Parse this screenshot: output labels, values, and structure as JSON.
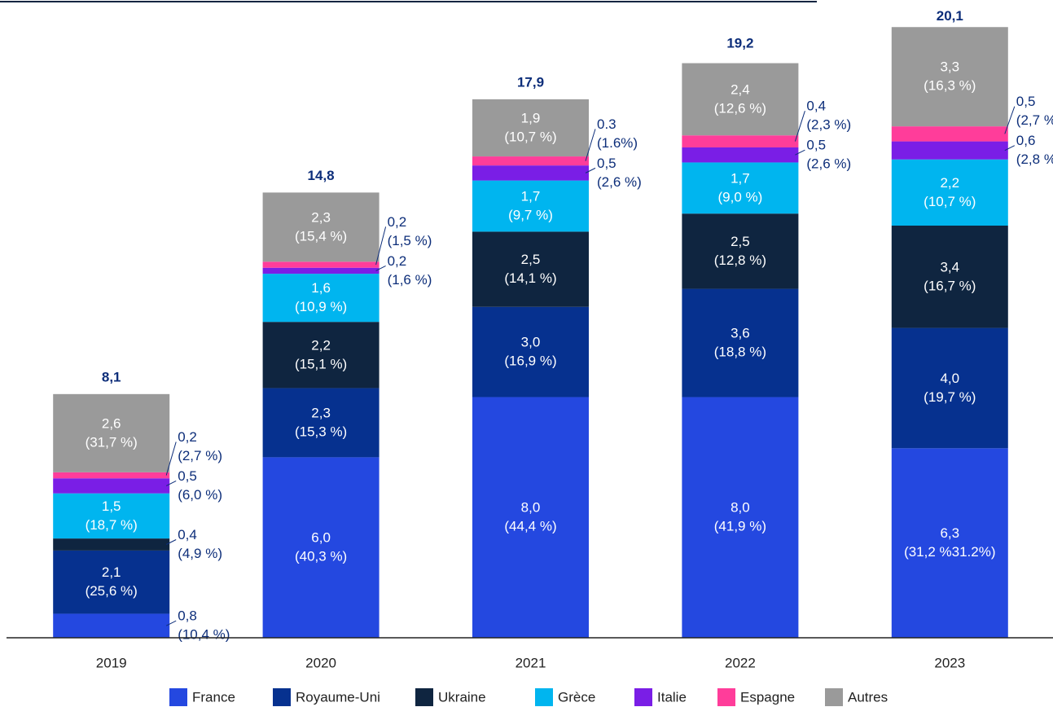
{
  "chart_data": {
    "type": "stacked_bar",
    "categories": [
      "2019",
      "2020",
      "2021",
      "2022",
      "2023"
    ],
    "ylim": [
      0,
      21.2
    ],
    "series": [
      {
        "name": "France",
        "color": "#2448e0",
        "values": [
          0.8,
          6.0,
          8.0,
          8.0,
          6.3
        ],
        "value_labels": [
          "0,8",
          "6,0",
          "8,0",
          "8,0",
          "6,3"
        ],
        "share_labels": [
          "(10,4 %)",
          "(40,3 %)",
          "(44,4 %)",
          "(41,9 %)",
          "(31,2 %31.2%)"
        ]
      },
      {
        "name": "Royaume-Uni",
        "color": "#06318f",
        "values": [
          2.1,
          2.3,
          3.0,
          3.6,
          4.0
        ],
        "value_labels": [
          "2,1",
          "2,3",
          "3,0",
          "3,6",
          "4,0"
        ],
        "share_labels": [
          "(25,6 %)",
          "(15,3 %)",
          "(16,9 %)",
          "(18,8 %)",
          "(19,7 %)"
        ]
      },
      {
        "name": "Ukraine",
        "color": "#0f2540",
        "values": [
          0.4,
          2.2,
          2.5,
          2.5,
          3.4
        ],
        "value_labels": [
          "0,4",
          "2,2",
          "2,5",
          "2,5",
          "3,4"
        ],
        "share_labels": [
          "(4,9 %)",
          "(15,1 %)",
          "(14,1 %)",
          "(12,8 %)",
          "(16,7 %)"
        ]
      },
      {
        "name": "Grèce",
        "color": "#00b5ef",
        "values": [
          1.5,
          1.6,
          1.7,
          1.7,
          2.2
        ],
        "value_labels": [
          "1,5",
          "1,6",
          "1,7",
          "1,7",
          "2,2"
        ],
        "share_labels": [
          "(18,7 %)",
          "(10,9 %)",
          "(9,7 %)",
          "(9,0 %)",
          "(10,7 %)"
        ]
      },
      {
        "name": "Italie",
        "color": "#7a1ee6",
        "values": [
          0.5,
          0.2,
          0.5,
          0.5,
          0.6
        ],
        "value_labels": [
          "0,5",
          "0,2",
          "0,5",
          "0,5",
          "0,6"
        ],
        "share_labels": [
          "(6,0 %)",
          "(1,6 %)",
          "(2,6 %)",
          "(2,6 %)",
          "(2,8 %)"
        ]
      },
      {
        "name": "Espagne",
        "color": "#ff3d9a",
        "values": [
          0.2,
          0.2,
          0.3,
          0.4,
          0.5
        ],
        "value_labels": [
          "0,2",
          "0,2",
          "0.3",
          "0,4",
          "0,5"
        ],
        "share_labels": [
          "(2,7 %)",
          "(1,5 %)",
          "(1.6%)",
          "(2,3 %)",
          "(2,7 %)"
        ]
      },
      {
        "name": "Autres",
        "color": "#9a9a9a",
        "values": [
          2.6,
          2.3,
          1.9,
          2.4,
          3.3
        ],
        "value_labels": [
          "2,6",
          "2,3",
          "1,9",
          "2,4",
          "3,3"
        ],
        "share_labels": [
          "(31,7 %)",
          "(15,4 %)",
          "(10,7 %)",
          "(12,6 %)",
          "(16,3 %)"
        ]
      }
    ],
    "totals": [
      8.1,
      14.8,
      17.9,
      19.2,
      20.1
    ],
    "total_labels": [
      "8,1",
      "14,8",
      "17,9",
      "19,2",
      "20,1"
    ]
  }
}
